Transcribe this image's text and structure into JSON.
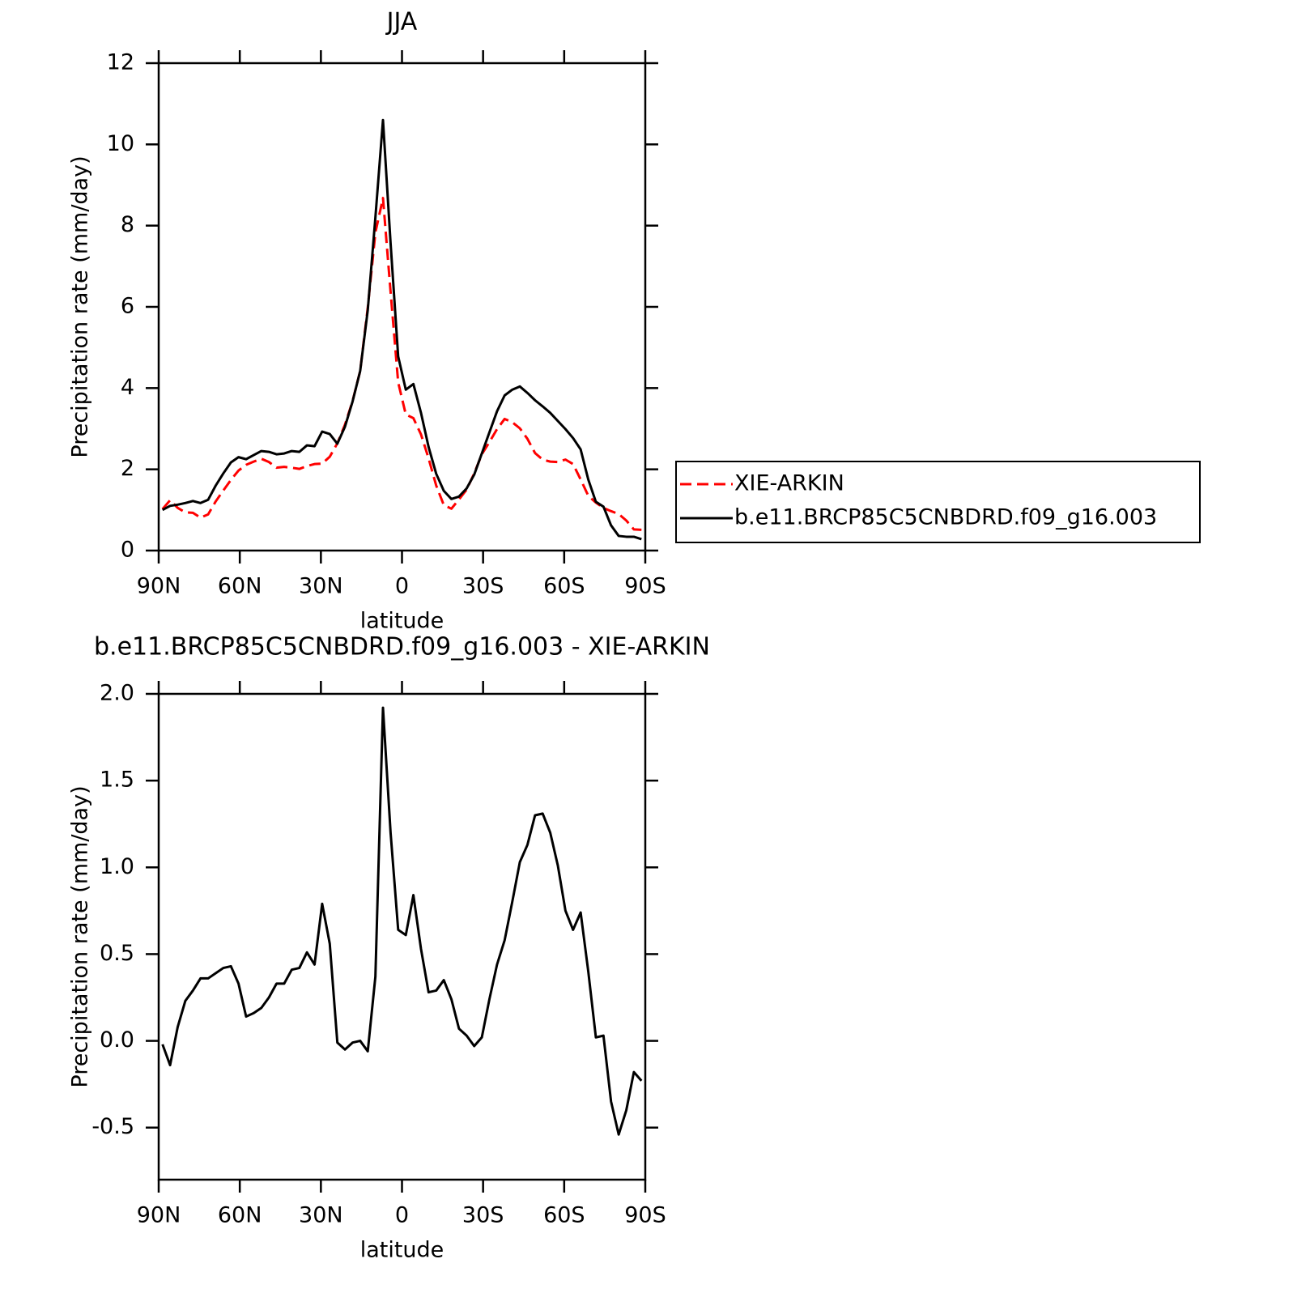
{
  "chart_data": [
    {
      "type": "line",
      "title": "JJA",
      "xlabel": "latitude",
      "ylabel": "Precipitation rate (mm/day)",
      "x": [
        88.59,
        85.78,
        82.97,
        80.16,
        77.34,
        74.53,
        71.72,
        68.91,
        66.09,
        63.28,
        60.47,
        57.66,
        54.84,
        52.03,
        49.22,
        46.41,
        43.59,
        40.78,
        37.97,
        35.16,
        32.34,
        29.53,
        26.72,
        23.91,
        21.09,
        18.28,
        15.47,
        12.66,
        9.84,
        7.03,
        4.22,
        1.41,
        -1.41,
        -4.22,
        -7.03,
        -9.84,
        -12.66,
        -15.47,
        -18.28,
        -21.09,
        -23.91,
        -26.72,
        -29.53,
        -32.34,
        -35.16,
        -37.97,
        -40.78,
        -43.59,
        -46.41,
        -49.22,
        -52.03,
        -54.84,
        -57.66,
        -60.47,
        -63.28,
        -66.09,
        -68.91,
        -71.72,
        -74.53,
        -77.34,
        -80.16,
        -82.97,
        -85.78,
        -88.59
      ],
      "series": [
        {
          "name": "XIE-ARKIN",
          "color": "#ff0000",
          "dashed": true,
          "values": [
            1.02,
            1.24,
            1.05,
            0.94,
            0.93,
            0.81,
            0.89,
            1.21,
            1.48,
            1.74,
            1.97,
            2.11,
            2.19,
            2.26,
            2.18,
            2.04,
            2.06,
            2.04,
            2.01,
            2.08,
            2.13,
            2.14,
            2.31,
            2.64,
            3.1,
            3.68,
            4.42,
            5.98,
            7.83,
            8.68,
            6.37,
            4.14,
            3.35,
            3.26,
            2.86,
            2.27,
            1.6,
            1.12,
            1.03,
            1.26,
            1.5,
            1.9,
            2.37,
            2.67,
            2.99,
            3.24,
            3.16,
            3.01,
            2.75,
            2.4,
            2.24,
            2.19,
            2.18,
            2.24,
            2.13,
            1.75,
            1.35,
            1.18,
            1.05,
            0.97,
            0.9,
            0.74,
            0.52,
            0.51
          ]
        },
        {
          "name": "b.e11.BRCP85C5CNBDRD.f09_g16.003",
          "color": "#000000",
          "dashed": false,
          "values": [
            1.0,
            1.1,
            1.13,
            1.17,
            1.22,
            1.17,
            1.25,
            1.6,
            1.9,
            2.17,
            2.3,
            2.25,
            2.35,
            2.45,
            2.43,
            2.37,
            2.39,
            2.45,
            2.43,
            2.59,
            2.57,
            2.93,
            2.87,
            2.63,
            3.05,
            3.67,
            4.42,
            5.92,
            8.2,
            10.6,
            7.57,
            4.78,
            3.96,
            4.1,
            3.39,
            2.55,
            1.89,
            1.47,
            1.27,
            1.33,
            1.53,
            1.87,
            2.39,
            2.91,
            3.43,
            3.82,
            3.96,
            4.04,
            3.88,
            3.7,
            3.55,
            3.39,
            3.19,
            2.99,
            2.77,
            2.49,
            1.75,
            1.2,
            1.08,
            0.62,
            0.36,
            0.34,
            0.34,
            0.28
          ]
        }
      ],
      "xlim": [
        90,
        -90
      ],
      "xticks": [
        {
          "value": 90,
          "label": "90N"
        },
        {
          "value": 60,
          "label": "60N"
        },
        {
          "value": 30,
          "label": "30N"
        },
        0,
        {
          "value": -30,
          "label": "30S"
        },
        {
          "value": -60,
          "label": "60S"
        },
        {
          "value": -90,
          "label": "90S"
        }
      ],
      "ylim": [
        0,
        12
      ],
      "yticks": [
        0,
        2,
        4,
        6,
        8,
        10,
        12
      ],
      "legend": "right"
    },
    {
      "type": "line",
      "title": "b.e11.BRCP85C5CNBDRD.f09_g16.003 - XIE-ARKIN",
      "xlabel": "latitude",
      "ylabel": "Precipitation rate (mm/day)",
      "x": [
        88.59,
        85.78,
        82.97,
        80.16,
        77.34,
        74.53,
        71.72,
        68.91,
        66.09,
        63.28,
        60.47,
        57.66,
        54.84,
        52.03,
        49.22,
        46.41,
        43.59,
        40.78,
        37.97,
        35.16,
        32.34,
        29.53,
        26.72,
        23.91,
        21.09,
        18.28,
        15.47,
        12.66,
        9.84,
        7.03,
        4.22,
        1.41,
        -1.41,
        -4.22,
        -7.03,
        -9.84,
        -12.66,
        -15.47,
        -18.28,
        -21.09,
        -23.91,
        -26.72,
        -29.53,
        -32.34,
        -35.16,
        -37.97,
        -40.78,
        -43.59,
        -46.41,
        -49.22,
        -52.03,
        -54.84,
        -57.66,
        -60.47,
        -63.28,
        -66.09,
        -68.91,
        -71.72,
        -74.53,
        -77.34,
        -80.16,
        -82.97,
        -85.78,
        -88.59
      ],
      "color": "#000000",
      "values": [
        -0.02,
        -0.14,
        0.08,
        0.23,
        0.29,
        0.36,
        0.36,
        0.39,
        0.42,
        0.43,
        0.33,
        0.14,
        0.16,
        0.19,
        0.25,
        0.33,
        0.33,
        0.41,
        0.42,
        0.51,
        0.44,
        0.79,
        0.56,
        -0.01,
        -0.05,
        -0.01,
        0.0,
        -0.06,
        0.37,
        1.92,
        1.2,
        0.64,
        0.61,
        0.84,
        0.53,
        0.28,
        0.29,
        0.35,
        0.24,
        0.07,
        0.03,
        -0.03,
        0.02,
        0.24,
        0.44,
        0.58,
        0.8,
        1.03,
        1.13,
        1.3,
        1.31,
        1.2,
        1.01,
        0.75,
        0.64,
        0.74,
        0.4,
        0.02,
        0.03,
        -0.35,
        -0.54,
        -0.4,
        -0.18,
        -0.23
      ],
      "xlim": [
        90,
        -90
      ],
      "xticks": [
        {
          "value": 90,
          "label": "90N"
        },
        {
          "value": 60,
          "label": "60N"
        },
        {
          "value": 30,
          "label": "30N"
        },
        0,
        {
          "value": -30,
          "label": "30S"
        },
        {
          "value": -60,
          "label": "60S"
        },
        {
          "value": -90,
          "label": "90S"
        }
      ],
      "ylim": [
        -0.8,
        2.0
      ],
      "yticks": [
        -0.5,
        {
          "value": 0,
          "label": "0.0"
        },
        0.5,
        {
          "value": 1,
          "label": "1.0"
        },
        1.5,
        {
          "value": 2,
          "label": "2.0"
        }
      ]
    }
  ]
}
